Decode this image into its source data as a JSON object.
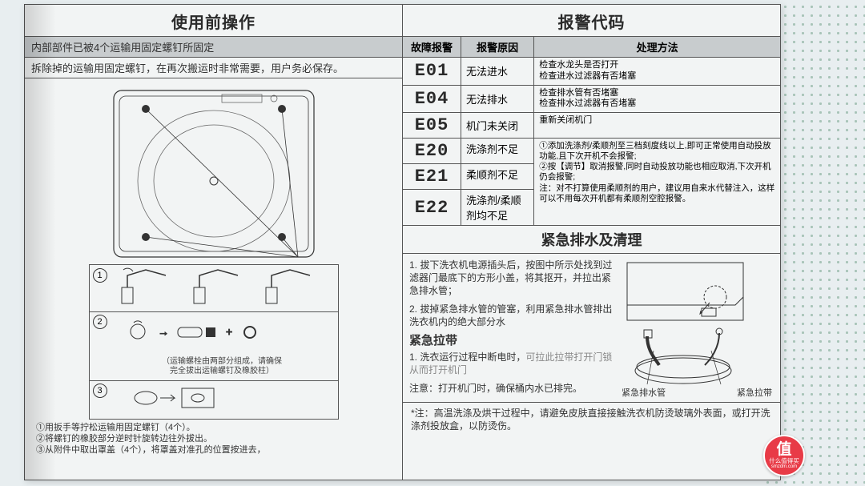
{
  "left": {
    "title": "使用前操作",
    "info1": "内部部件已被4个运输用固定螺钉所固定",
    "info2": "拆除掉的运输用固定螺钉，在再次搬运时非常需要，用户务必保存。",
    "step_note": "（运输螺栓由两部分组成，请确保\n完全拔出运输螺钉及橡胶柱）",
    "foot1": "①用扳手等拧松运输用固定螺钉（4个）。",
    "foot2": "②将螺钉的橡胶部分逆时针旋转边往外拔出。",
    "foot3": "③从附件中取出罩盖（4个），将罩盖对准孔的位置按进去，"
  },
  "right": {
    "title": "报警代码",
    "th1": "故障报警",
    "th2": "报警原因",
    "th3": "处理方法",
    "rows": [
      {
        "code": "E01",
        "reason": "无法进水",
        "sol": "检查水龙头是否打开\n检查进水过滤器有否堵塞"
      },
      {
        "code": "E04",
        "reason": "无法排水",
        "sol": "检查排水管有否堵塞\n检查排水过滤器有否堵塞"
      },
      {
        "code": "E05",
        "reason": "机门未关闭",
        "sol": "重新关闭机门"
      },
      {
        "code": "E20",
        "reason": "洗涤剂不足",
        "sol": "①添加洗涤剂/柔顺剂至三档刻度线以上,即可正常使用自动投放功能,且下次开机不会报警;\n②按【调节】取消报警,同时自动投放功能也相应取消,下次开机仍会报警;\n注：对不打算使用柔顺剂的用户，建议用自来水代替注入，这样可以不用每次开机都有柔顺剂空腔报警。"
      },
      {
        "code": "E21",
        "reason": "柔顺剂不足",
        "sol": ""
      },
      {
        "code": "E22",
        "reason": "洗涤剂/柔顺剂均不足",
        "sol": ""
      }
    ],
    "emerg_title": "紧急排水及清理",
    "emerg1": "1. 拔下洗衣机电源插头后，按图中所示处找到过滤器门最底下的方形小盖，将其抠开，并拉出紧急排水管；",
    "emerg2": "2. 拔掉紧急排水管的管塞，利用紧急排水管排出洗衣机内的绝大部分水",
    "emerg_sub": "紧急拉带",
    "emerg3": "1. 洗衣运行过程中断电时，",
    "emerg3b": "可拉此拉带打开门锁从而打开机门",
    "emerg_note": "注意：打开机门时，确保桶内水已排完。",
    "diag_label1": "紧急排水管",
    "diag_label2": "紧急拉带",
    "footer": "*注：高温洗涤及烘干过程中，请避免皮肤直接接触洗衣机防烫玻璃外表面，或打开洗涤剂投放盒，以防烫伤。"
  },
  "badge": {
    "zhi": "值",
    "sub": "什么值得买",
    "url": "smzdm.com"
  },
  "colors": {
    "border": "#555555",
    "darkbg": "#c8ccce",
    "badge": "#e83b47"
  }
}
